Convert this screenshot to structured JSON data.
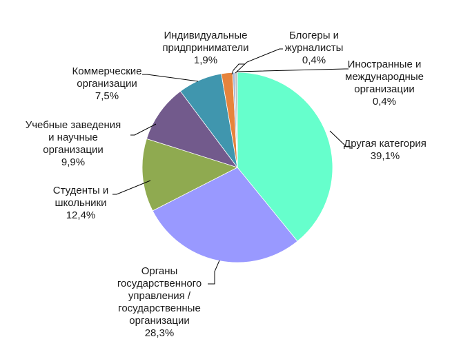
{
  "chart_data": {
    "type": "pie",
    "title": "",
    "start_angle_deg": 0,
    "direction": "clockwise",
    "slices": [
      {
        "label_lines": [
          "Другая категория"
        ],
        "percent_text": "39,1%",
        "value": 39.1,
        "color": "#66ffcc"
      },
      {
        "label_lines": [
          "Органы",
          "государственного",
          "управления /",
          "государственные",
          "организации"
        ],
        "percent_text": "28,3%",
        "value": 28.3,
        "color": "#9999ff"
      },
      {
        "label_lines": [
          "Студенты и",
          "школьники"
        ],
        "percent_text": "12,4%",
        "value": 12.4,
        "color": "#8faa50"
      },
      {
        "label_lines": [
          "Учебные заведения",
          "и научные",
          "организации"
        ],
        "percent_text": "9,9%",
        "value": 9.9,
        "color": "#725a8c"
      },
      {
        "label_lines": [
          "Коммерческие",
          "организации"
        ],
        "percent_text": "7,5%",
        "value": 7.5,
        "color": "#4096ae"
      },
      {
        "label_lines": [
          "Индивидуальные",
          "придприниматели"
        ],
        "percent_text": "1,9%",
        "value": 1.9,
        "color": "#e6843c"
      },
      {
        "label_lines": [
          "Блогеры и",
          "журналисты"
        ],
        "percent_text": "0,4%",
        "value": 0.4,
        "color": "#a3b7d6"
      },
      {
        "label_lines": [
          "Иностранные и",
          "международные",
          "организации"
        ],
        "percent_text": "0,4%",
        "value": 0.4,
        "color": "#c0c0c0"
      }
    ]
  }
}
